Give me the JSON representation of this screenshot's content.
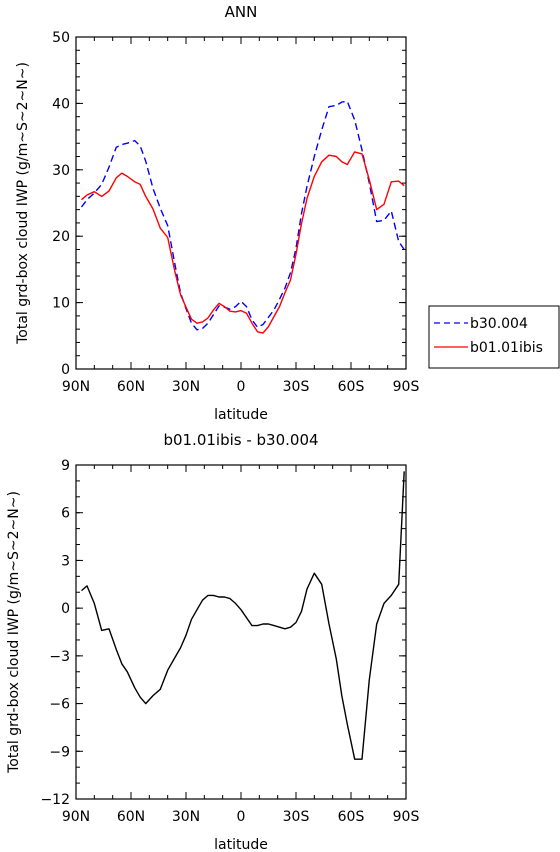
{
  "chart_data": [
    {
      "type": "line",
      "title": "ANN",
      "xlabel": "latitude",
      "ylabel": "Total grd-box cloud IWP (g/m~S~2~N~)",
      "xlim": [
        -90,
        90
      ],
      "ylim": [
        0,
        50
      ],
      "xticks": [
        -90,
        -60,
        -30,
        0,
        30,
        60,
        90
      ],
      "xtick_labels": [
        "90N",
        "60N",
        "30N",
        "0",
        "30S",
        "60S",
        "90S"
      ],
      "yticks": [
        0,
        10,
        20,
        30,
        40,
        50
      ],
      "ytick_labels": [
        "0",
        "10",
        "20",
        "30",
        "40",
        "50"
      ],
      "legend_position": "right",
      "series": [
        {
          "name": "b30.004",
          "color": "#0000ff",
          "dash": "dashed",
          "x": [
            -87,
            -84,
            -80,
            -76,
            -72,
            -68,
            -65,
            -62,
            -58,
            -55,
            -52,
            -48,
            -44,
            -40,
            -36,
            -33,
            -30,
            -27,
            -24,
            -21,
            -18,
            -15,
            -12,
            -9,
            -6,
            -3,
            0,
            3,
            6,
            9,
            12,
            15,
            18,
            21,
            24,
            27,
            30,
            33,
            36,
            40,
            44,
            48,
            52,
            55,
            58,
            62,
            66,
            70,
            74,
            78,
            82,
            86,
            89
          ],
          "y": [
            24.4,
            25.5,
            26.5,
            27.8,
            30.4,
            33.4,
            33.8,
            34.0,
            34.4,
            33.6,
            31.3,
            27.2,
            24.2,
            21.6,
            15.7,
            11.5,
            9.1,
            6.9,
            5.9,
            6.1,
            6.9,
            8.2,
            9.5,
            9.3,
            9.0,
            9.4,
            10.2,
            9.4,
            7.4,
            6.3,
            6.7,
            7.8,
            8.9,
            10.5,
            12.2,
            14.5,
            18.2,
            23.4,
            27.5,
            32.0,
            36.0,
            39.5,
            39.7,
            40.2,
            40.3,
            37.5,
            33.0,
            28.0,
            22.2,
            22.4,
            23.8,
            19.2,
            18.0
          ]
        },
        {
          "name": "b01.01ibis",
          "color": "#ff0000",
          "dash": "solid",
          "x": [
            -87,
            -84,
            -80,
            -76,
            -72,
            -68,
            -65,
            -62,
            -58,
            -55,
            -52,
            -48,
            -44,
            -40,
            -36,
            -33,
            -30,
            -27,
            -24,
            -21,
            -18,
            -15,
            -12,
            -9,
            -6,
            -3,
            0,
            3,
            6,
            9,
            12,
            15,
            18,
            21,
            24,
            27,
            30,
            33,
            36,
            40,
            44,
            48,
            52,
            55,
            58,
            62,
            66,
            70,
            74,
            78,
            82,
            86,
            89
          ],
          "y": [
            25.5,
            26.2,
            26.7,
            26.0,
            26.8,
            28.8,
            29.5,
            29.0,
            28.2,
            27.8,
            26.0,
            24.1,
            21.2,
            19.8,
            14.6,
            11.2,
            9.3,
            7.5,
            6.9,
            7.1,
            7.7,
            8.9,
            9.9,
            9.4,
            8.7,
            8.6,
            8.8,
            8.4,
            6.9,
            5.6,
            5.4,
            6.4,
            7.9,
            9.4,
            11.5,
            13.4,
            17.3,
            21.9,
            25.7,
            29.0,
            31.2,
            32.2,
            32.0,
            31.2,
            30.8,
            32.7,
            32.4,
            28.5,
            24.0,
            24.8,
            28.2,
            28.3,
            27.6
          ]
        }
      ]
    },
    {
      "type": "line",
      "title": "b01.01ibis - b30.004",
      "xlabel": "latitude",
      "ylabel": "Total grd-box cloud IWP (g/m~S~2~N~)",
      "xlim": [
        -90,
        90
      ],
      "ylim": [
        -12,
        9
      ],
      "xticks": [
        -90,
        -60,
        -30,
        0,
        30,
        60,
        90
      ],
      "xtick_labels": [
        "90N",
        "60N",
        "30N",
        "0",
        "30S",
        "60S",
        "90S"
      ],
      "yticks": [
        -12,
        -9,
        -6,
        -3,
        0,
        3,
        6,
        9
      ],
      "ytick_labels": [
        "−12",
        "−9",
        "−6",
        "−3",
        "0",
        "3",
        "6",
        "9"
      ],
      "series": [
        {
          "color": "#000000",
          "dash": "solid",
          "x": [
            -87,
            -84,
            -80,
            -76,
            -72,
            -68,
            -65,
            -62,
            -58,
            -55,
            -52,
            -48,
            -44,
            -40,
            -36,
            -33,
            -30,
            -27,
            -24,
            -21,
            -18,
            -15,
            -12,
            -9,
            -6,
            -3,
            0,
            3,
            6,
            9,
            12,
            15,
            18,
            21,
            24,
            27,
            30,
            33,
            36,
            40,
            44,
            48,
            52,
            55,
            58,
            62,
            66,
            70,
            74,
            78,
            82,
            86,
            89
          ],
          "y": [
            1.1,
            1.4,
            0.3,
            -1.4,
            -1.3,
            -2.6,
            -3.5,
            -4.0,
            -5.0,
            -5.6,
            -6.0,
            -5.5,
            -5.1,
            -3.9,
            -3.1,
            -2.5,
            -1.7,
            -0.7,
            -0.1,
            0.5,
            0.8,
            0.8,
            0.7,
            0.7,
            0.6,
            0.3,
            -0.1,
            -0.6,
            -1.1,
            -1.1,
            -1.0,
            -1.0,
            -1.1,
            -1.2,
            -1.3,
            -1.2,
            -0.9,
            -0.2,
            1.2,
            2.2,
            1.5,
            -1.0,
            -3.2,
            -5.5,
            -7.3,
            -9.5,
            -9.5,
            -4.5,
            -1.0,
            0.3,
            0.8,
            1.5,
            8.6
          ]
        }
      ]
    }
  ]
}
